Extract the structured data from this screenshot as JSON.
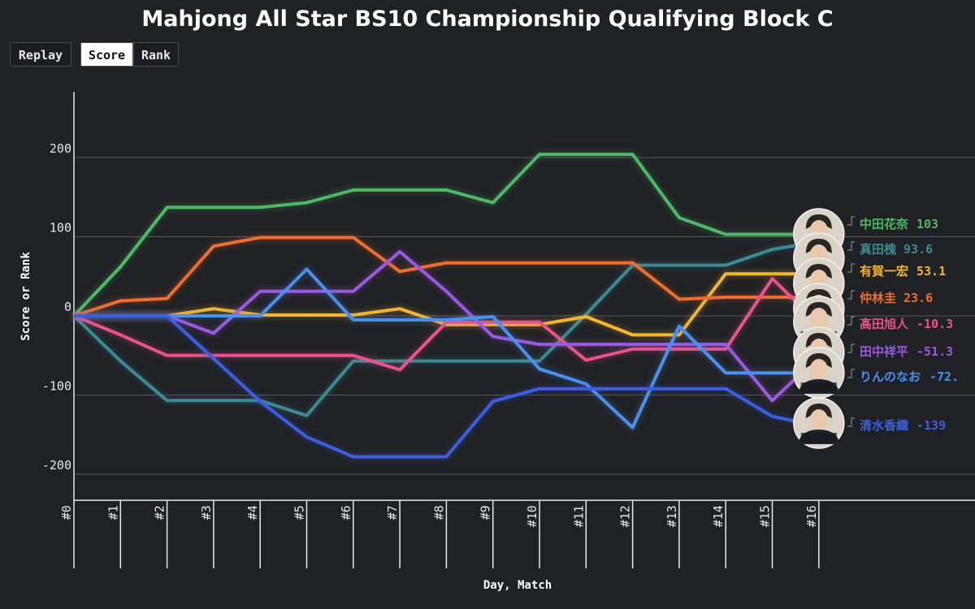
{
  "title": "Mahjong All Star BS10 Championship Qualifying Block C",
  "controls": {
    "replay": "Replay",
    "score": "Score",
    "rank": "Rank",
    "active": "Score"
  },
  "chart_data": {
    "type": "line",
    "title": "Mahjong All Star BS10 Championship Qualifying Block C",
    "xlabel": "Day, Match",
    "ylabel": "Score or Rank",
    "x": [
      "#0",
      "#1",
      "#2",
      "#3",
      "#4",
      "#5",
      "#6",
      "#7",
      "#8",
      "#9",
      "#10",
      "#11",
      "#12",
      "#13",
      "#14",
      "#15",
      "#16"
    ],
    "yticks": [
      200,
      100,
      0,
      -100,
      -200
    ],
    "ylim": [
      -233,
      283
    ],
    "grid": true,
    "legend": "right, at line ends with player photos",
    "series": [
      {
        "name": "中田花奈",
        "label": "103",
        "color": "#4db865",
        "values": [
          0,
          62,
          137,
          137,
          137,
          143,
          159,
          159,
          159,
          143,
          204,
          204,
          204,
          124,
          103,
          103,
          103
        ]
      },
      {
        "name": "真田槐",
        "label": "93.6",
        "color": "#3c8a93",
        "values": [
          0,
          -57,
          -107,
          -107,
          -107,
          -126,
          -57,
          -57,
          -57,
          -57,
          -57,
          2,
          64,
          64,
          64,
          84,
          93.6
        ]
      },
      {
        "name": "有賀一宏",
        "label": "53.1",
        "color": "#f2b630",
        "values": [
          0,
          0,
          0,
          9,
          1,
          1,
          1,
          9,
          -11,
          -11,
          -11,
          -1,
          -24,
          -24,
          53.1,
          53.1,
          53.1
        ]
      },
      {
        "name": "仲林圭",
        "label": "23.6",
        "color": "#ef6d2e",
        "values": [
          0,
          19,
          22,
          88,
          99,
          99,
          99,
          56,
          67,
          67,
          67,
          67,
          67,
          21,
          23.6,
          23.6,
          23.6
        ]
      },
      {
        "name": "髙田旭人",
        "label": "-10.3",
        "color": "#e8548a",
        "values": [
          0,
          -24,
          -50,
          -50,
          -50,
          -50,
          -50,
          -68,
          -8,
          -8,
          -8,
          -56,
          -42,
          -42,
          -42,
          47,
          -10.3
        ]
      },
      {
        "name": "田中祥平",
        "label": "-51.3",
        "color": "#9a5ae0",
        "values": [
          0,
          0,
          0,
          -22,
          31,
          31,
          31,
          81,
          31,
          -26,
          -36,
          -36,
          -36,
          -36,
          -36,
          -107,
          -51.3
        ]
      },
      {
        "name": "りんのなお",
        "label": "-72.",
        "color": "#4c90ee",
        "values": [
          0,
          0,
          0,
          0,
          0,
          59,
          -5,
          -5,
          -5,
          -1,
          -67,
          -86,
          -141,
          -13,
          -72,
          -72,
          -72
        ]
      },
      {
        "name": "清水香織",
        "label": "-139",
        "color": "#3c5ee0",
        "values": [
          0,
          0,
          0,
          -54,
          -108,
          -153,
          -178,
          -178,
          -178,
          -108,
          -92,
          -92,
          -92,
          -92,
          -92,
          -127,
          -139
        ]
      }
    ]
  }
}
